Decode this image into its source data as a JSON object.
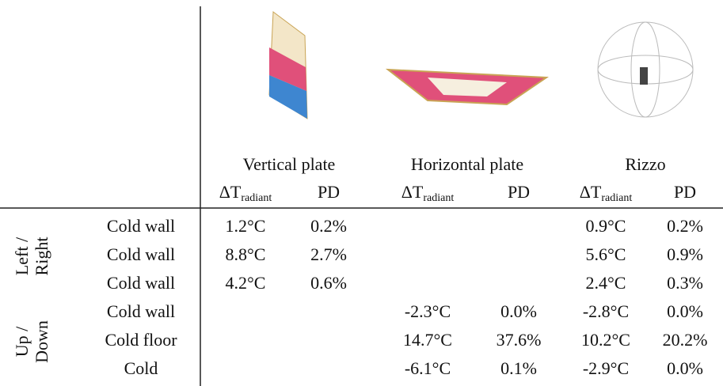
{
  "table": {
    "methods": [
      {
        "name": "Vertical plate",
        "columns": [
          {
            "symbol": "ΔT",
            "subscript": "radiant"
          },
          {
            "symbol": "PD"
          }
        ]
      },
      {
        "name": "Horizontal plate",
        "columns": [
          {
            "symbol": "ΔT",
            "subscript": "radiant"
          },
          {
            "symbol": "PD"
          }
        ]
      },
      {
        "name": "Rizzo",
        "columns": [
          {
            "symbol": "ΔT",
            "subscript": "radiant"
          },
          {
            "symbol": "PD"
          }
        ]
      }
    ],
    "groups": [
      {
        "label_lines": [
          "Left /",
          "Right"
        ],
        "rows": [
          {
            "label": "Cold wall",
            "cells": [
              "1.2°C",
              "0.2%",
              null,
              null,
              "0.9°C",
              "0.2%"
            ]
          },
          {
            "label": "Cold wall",
            "cells": [
              "8.8°C",
              "2.7%",
              null,
              null,
              "5.6°C",
              "0.9%"
            ]
          },
          {
            "label": "Cold wall",
            "cells": [
              "4.2°C",
              "0.6%",
              null,
              null,
              "2.4°C",
              "0.3%"
            ]
          }
        ]
      },
      {
        "label_lines": [
          "Up /",
          "Down"
        ],
        "rows": [
          {
            "label": "Cold wall",
            "cells": [
              null,
              null,
              "-2.3°C",
              "0.0%",
              "-2.8°C",
              "0.0%"
            ]
          },
          {
            "label": "Cold floor",
            "cells": [
              null,
              null,
              "14.7°C",
              "37.6%",
              "10.2°C",
              "20.2%"
            ]
          },
          {
            "label": "Cold",
            "cells": [
              null,
              null,
              "-6.1°C",
              "0.1%",
              "-2.9°C",
              "0.0%"
            ]
          }
        ]
      }
    ]
  }
}
